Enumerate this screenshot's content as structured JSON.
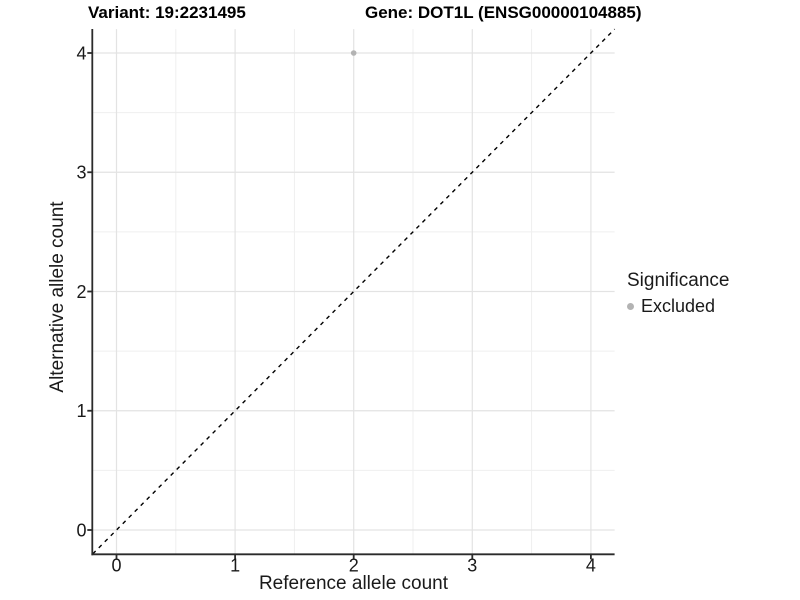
{
  "header": {
    "variant_label": "Variant: 19:2231495",
    "gene_label": "Gene: DOT1L (ENSG00000104885)"
  },
  "chart_data": {
    "type": "scatter",
    "title": "Variant: 19:2231495        Gene: DOT1L (ENSG00000104885)",
    "xlabel": "Reference allele count",
    "ylabel": "Alternative allele count",
    "xlim": [
      -0.2,
      4.2
    ],
    "ylim": [
      -0.2,
      4.2
    ],
    "x_ticks": [
      "0",
      "1",
      "2",
      "3",
      "4"
    ],
    "y_ticks": [
      "0",
      "1",
      "2",
      "3",
      "4"
    ],
    "minor_grid_positions": [
      0.5,
      1.5,
      2.5,
      3.5
    ],
    "grid": true,
    "points": [
      {
        "x": 2,
        "y": 4,
        "series": "Excluded"
      }
    ],
    "identity_line": {
      "style": "dashed",
      "slope": 1,
      "intercept": 0,
      "color": "#000000"
    },
    "legend": {
      "position": "right",
      "title": "Significance",
      "entries": [
        {
          "label": "Excluded",
          "color": "#b3b3b3"
        }
      ]
    }
  },
  "colors": {
    "point_gray": "#b3b3b3",
    "major_grid": "#e3e3e3",
    "minor_grid": "#efefef",
    "axis_line": "#2b2b2b",
    "background": "#ffffff"
  }
}
